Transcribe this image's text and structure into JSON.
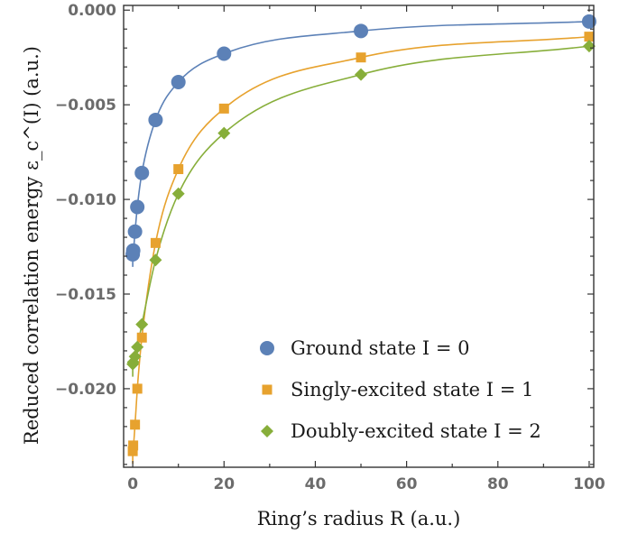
{
  "chart_data": {
    "type": "scatter",
    "xlabel": "Ring’s radius R (a.u.)",
    "ylabel": "Reduced correlation energy ε_c^(I) (a.u.)",
    "xlim": [
      -2,
      101
    ],
    "ylim": [
      -0.02415,
      0.00025
    ],
    "x_ticks": [
      0,
      20,
      40,
      60,
      80,
      100
    ],
    "x_tick_labels": [
      "0",
      "20",
      "40",
      "60",
      "80",
      "100"
    ],
    "y_ticks": [
      0.0,
      -0.005,
      -0.01,
      -0.015,
      -0.02
    ],
    "y_tick_labels": [
      "0.000",
      "−0.005",
      "−0.010",
      "−0.015",
      "−0.020"
    ],
    "grid": false,
    "legend_position": "bottom-right",
    "series": [
      {
        "name": "Ground state I = 0",
        "marker": "circle",
        "color": "#5c81b7",
        "x": [
          0,
          0.1,
          0.5,
          1,
          2,
          5,
          10,
          20,
          50,
          100
        ],
        "y": [
          -0.0129,
          -0.0127,
          -0.0117,
          -0.0104,
          -0.0086,
          -0.0058,
          -0.0038,
          -0.0023,
          -0.0011,
          -0.0006
        ],
        "fit_curve": true
      },
      {
        "name": "Singly-excited state I = 1",
        "marker": "square",
        "color": "#e7a22e",
        "x": [
          0,
          0.1,
          0.5,
          1,
          2,
          5,
          10,
          20,
          50,
          100
        ],
        "y": [
          -0.0233,
          -0.023,
          -0.0219,
          -0.02,
          -0.0173,
          -0.0123,
          -0.0084,
          -0.0052,
          -0.0025,
          -0.0014
        ],
        "fit_curve": true
      },
      {
        "name": "Doubly-excited state I = 2",
        "marker": "diamond",
        "color": "#87ae3a",
        "x": [
          0,
          0.1,
          0.5,
          1,
          2,
          5,
          10,
          20,
          50,
          100
        ],
        "y": [
          -0.0187,
          -0.0186,
          -0.0183,
          -0.0178,
          -0.0166,
          -0.0132,
          -0.0097,
          -0.0065,
          -0.0034,
          -0.0019
        ],
        "fit_curve": true
      }
    ]
  }
}
